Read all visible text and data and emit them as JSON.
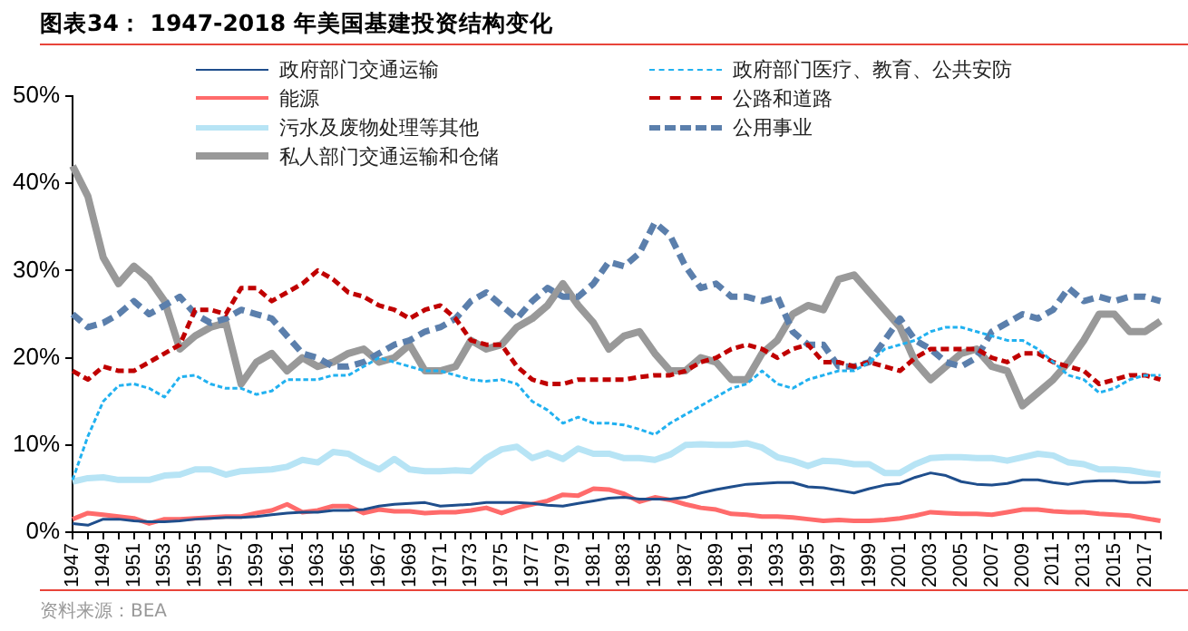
{
  "chart_data": {
    "type": "line",
    "title": "图表34：  1947-2018 年美国基建投资结构变化",
    "categories": [
      "1947",
      null,
      "1949",
      null,
      "1951",
      null,
      "1953",
      null,
      "1955",
      null,
      "1957",
      null,
      "1959",
      null,
      "1961",
      null,
      "1963",
      null,
      "1965",
      null,
      "1967",
      null,
      "1969",
      null,
      "1971",
      null,
      "1973",
      null,
      "1975",
      null,
      "1977",
      null,
      "1979",
      null,
      "1981",
      null,
      "1983",
      null,
      "1985",
      null,
      "1987",
      null,
      "1989",
      null,
      "1991",
      null,
      "1993",
      null,
      "1995",
      null,
      "1997",
      null,
      "1999",
      null,
      "2001",
      null,
      "2003",
      null,
      "2005",
      null,
      "2007",
      null,
      "2009",
      null,
      "2011",
      null,
      "2013",
      null,
      "2015",
      null,
      "2017",
      null
    ],
    "ylim": [
      0,
      50
    ],
    "yticks": [
      {
        "value": 0,
        "label": "0%"
      },
      {
        "value": 10,
        "label": "10%"
      },
      {
        "value": 20,
        "label": "20%"
      },
      {
        "value": 30,
        "label": "30%"
      },
      {
        "value": 40,
        "label": "40%"
      },
      {
        "value": 50,
        "label": "50%"
      }
    ],
    "grid": false,
    "legend": "top",
    "marker": "none",
    "annotations": [
      "资料来源：BEA"
    ],
    "series": [
      {
        "name": "政府部门交通运输",
        "color": "#1f4e8c",
        "line_style": "solid",
        "values": [
          1,
          0.8,
          1.5,
          1.5,
          1.3,
          1.2,
          1.2,
          1.3,
          1.5,
          1.6,
          1.7,
          1.7,
          1.8,
          2,
          2.2,
          2.3,
          2.3,
          2.5,
          2.5,
          2.6,
          3,
          3.2,
          3.3,
          3.4,
          3,
          3.1,
          3.2,
          3.4,
          3.4,
          3.4,
          3.3,
          3.1,
          3,
          3.3,
          3.6,
          3.9,
          4,
          3.8,
          3.8,
          3.8,
          4,
          4.5,
          4.9,
          5.2,
          5.5,
          5.6,
          5.7,
          5.7,
          5.2,
          5.1,
          4.8,
          4.5,
          5,
          5.4,
          5.6,
          6.3,
          6.8,
          6.5,
          5.8,
          5.5,
          5.4,
          5.6,
          6,
          6,
          5.7,
          5.5,
          5.8,
          5.9,
          5.9,
          5.7,
          5.7,
          5.8
        ]
      },
      {
        "name": "政府部门医疗、教育、公共安防",
        "color": "#21b1f0",
        "line_style": "dashed",
        "values": [
          6,
          11,
          15,
          16.8,
          17,
          16.5,
          15.5,
          17.8,
          18,
          17,
          16.5,
          16.5,
          15.8,
          16.2,
          17.5,
          17.5,
          17.5,
          18,
          18,
          19,
          20,
          19.5,
          19,
          18.5,
          18.5,
          18,
          17.5,
          17.3,
          17.5,
          17,
          15,
          14,
          12.5,
          13.2,
          12.5,
          12.5,
          12.3,
          11.8,
          11.2,
          12.5,
          13.5,
          14.5,
          15.5,
          16.5,
          17,
          18.5,
          17,
          16.5,
          17.5,
          18,
          18.5,
          18.5,
          19.5,
          21,
          21.5,
          22,
          23,
          23.5,
          23.5,
          23,
          22.5,
          22,
          22,
          21,
          19.5,
          18,
          17.5,
          16,
          16.5,
          17.5,
          18,
          18
        ]
      },
      {
        "name": "能源",
        "color": "#ff6b6b",
        "line_style": "solid",
        "values": [
          1.5,
          2.2,
          2,
          1.8,
          1.6,
          1,
          1.5,
          1.5,
          1.6,
          1.7,
          1.8,
          1.8,
          2.2,
          2.5,
          3.2,
          2.3,
          2.5,
          3,
          3,
          2.2,
          2.6,
          2.4,
          2.4,
          2.2,
          2.3,
          2.3,
          2.5,
          2.8,
          2.2,
          2.8,
          3.2,
          3.6,
          4.3,
          4.2,
          5,
          4.9,
          4.4,
          3.5,
          4,
          3.7,
          3.2,
          2.8,
          2.6,
          2.1,
          2,
          1.8,
          1.8,
          1.7,
          1.5,
          1.3,
          1.4,
          1.3,
          1.3,
          1.4,
          1.6,
          1.9,
          2.3,
          2.2,
          2.1,
          2.1,
          2,
          2.3,
          2.6,
          2.6,
          2.4,
          2.3,
          2.3,
          2.1,
          2,
          1.9,
          1.6,
          1.3
        ]
      },
      {
        "name": "公路和道路",
        "color": "#c00000",
        "line_style": "dashed",
        "values": [
          18.5,
          17.5,
          19,
          18.5,
          18.5,
          19.5,
          20.5,
          21.5,
          25.5,
          25.5,
          25,
          28,
          28,
          26.5,
          27.5,
          28.5,
          30,
          29,
          27.5,
          27,
          26,
          25.5,
          24.5,
          25.5,
          26,
          24.5,
          22,
          21.5,
          21.5,
          19,
          17.5,
          17,
          17,
          17.5,
          17.5,
          17.5,
          17.5,
          17.8,
          18,
          18,
          18.5,
          19.5,
          20,
          21,
          21.5,
          21,
          20,
          21,
          21.5,
          19.5,
          19.5,
          19,
          19.5,
          19,
          18.5,
          20,
          21,
          21,
          21,
          21,
          20,
          19.5,
          20.5,
          20.5,
          19.5,
          19,
          18.5,
          17,
          17.5,
          18,
          18,
          17.5
        ]
      },
      {
        "name": "污水及废物处理等其他",
        "color": "#b7e4f5",
        "line_style": "solid",
        "values": [
          5.8,
          6.2,
          6.3,
          6,
          6,
          6,
          6.5,
          6.6,
          7.2,
          7.2,
          6.6,
          7,
          7.1,
          7.2,
          7.5,
          8.3,
          8,
          9.2,
          9,
          8,
          7.2,
          8.4,
          7.2,
          7,
          7,
          7.1,
          7,
          8.5,
          9.5,
          9.8,
          8.5,
          9.1,
          8.4,
          9.6,
          9,
          9,
          8.5,
          8.5,
          8.3,
          8.9,
          10,
          10.1,
          10,
          10,
          10.2,
          9.7,
          8.6,
          8.2,
          7.6,
          8.2,
          8.1,
          7.8,
          7.8,
          6.8,
          6.8,
          7.8,
          8.5,
          8.6,
          8.6,
          8.5,
          8.5,
          8.2,
          8.6,
          9,
          8.8,
          8,
          7.8,
          7.2,
          7.2,
          7.1,
          6.8,
          6.6
        ]
      },
      {
        "name": "公用事业",
        "color": "#5b7fac",
        "line_style": "dashed",
        "values": [
          25,
          23.5,
          24,
          25,
          26.5,
          25,
          26,
          27,
          25,
          24,
          24.5,
          25.5,
          25,
          24.5,
          22.5,
          20.5,
          20,
          19,
          19,
          19.5,
          20.5,
          21.5,
          22,
          23,
          23.5,
          24.5,
          26.5,
          27.5,
          26,
          24.5,
          26.5,
          28,
          27,
          27,
          28.5,
          31,
          30.5,
          32,
          35.5,
          34,
          30.5,
          28,
          28.5,
          27,
          27,
          26.5,
          27,
          23,
          21.5,
          21.5,
          19,
          19,
          19.5,
          22,
          24.5,
          22,
          21,
          19.5,
          19,
          20,
          23,
          24,
          25,
          24.5,
          25.5,
          28,
          26.5,
          27,
          26.5,
          27,
          27,
          26.5
        ]
      },
      {
        "name": "私人部门交通运输和仓储",
        "color": "#999999",
        "line_style": "solid",
        "values": [
          42,
          38.5,
          31.5,
          28.5,
          30.5,
          29,
          26.5,
          21,
          22.5,
          23.5,
          24,
          17,
          19.5,
          20.5,
          18.5,
          20,
          19,
          19.5,
          20.5,
          21,
          19.5,
          20,
          21.5,
          18.5,
          18.5,
          19,
          22,
          21,
          21.5,
          23.5,
          24.5,
          26,
          28.5,
          26,
          24,
          21,
          22.5,
          23,
          20.5,
          18.5,
          18.5,
          20,
          19.5,
          17.5,
          17.5,
          20.5,
          22,
          25,
          26,
          25.5,
          29,
          29.5,
          27.5,
          25.5,
          23.5,
          19.5,
          17.5,
          19,
          20.5,
          21,
          19,
          18.5,
          14.5,
          16,
          17.5,
          19.5,
          22,
          25,
          25,
          23,
          23,
          24.2
        ]
      }
    ]
  }
}
